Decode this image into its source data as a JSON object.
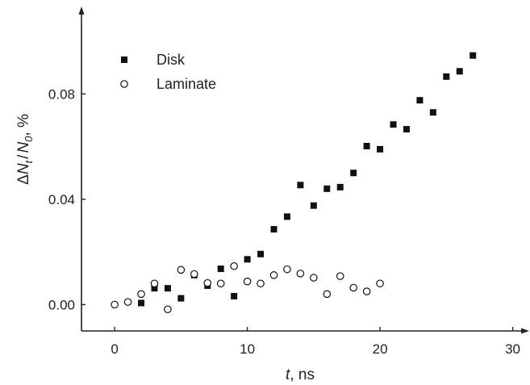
{
  "chart_data": {
    "type": "scatter",
    "xlabel": {
      "var": "t",
      "unit": ", ns"
    },
    "ylabel": {
      "delta": "Δ",
      "var1": "N",
      "sub1": "t",
      "slash": "/",
      "var2": "N",
      "sub2": "0",
      "unit": ", %"
    },
    "xlim": [
      -2.5,
      31
    ],
    "ylim": [
      -0.01,
      0.112
    ],
    "xticks": [
      0,
      10,
      20,
      30
    ],
    "yticks": [
      0.0,
      0.04,
      0.08
    ],
    "xtick_labels": [
      "0",
      "10",
      "20",
      "30"
    ],
    "ytick_labels": [
      "0.00",
      "0.04",
      "0.08"
    ],
    "grid": false,
    "legend_position": "top-left",
    "series": [
      {
        "name": "Disk",
        "marker": "filled-square",
        "color": "#111111",
        "points": [
          [
            2,
            0.0006
          ],
          [
            3,
            0.0062
          ],
          [
            4,
            0.0062
          ],
          [
            5,
            0.0024
          ],
          [
            6,
            0.0112
          ],
          [
            7,
            0.0072
          ],
          [
            8,
            0.0136
          ],
          [
            9,
            0.0032
          ],
          [
            10,
            0.0172
          ],
          [
            11,
            0.0192
          ],
          [
            12,
            0.0286
          ],
          [
            13,
            0.0334
          ],
          [
            14,
            0.0454
          ],
          [
            15,
            0.0376
          ],
          [
            16,
            0.044
          ],
          [
            17,
            0.0446
          ],
          [
            18,
            0.05
          ],
          [
            19,
            0.0602
          ],
          [
            20,
            0.059
          ],
          [
            21,
            0.0684
          ],
          [
            22,
            0.0666
          ],
          [
            23,
            0.0776
          ],
          [
            24,
            0.073
          ],
          [
            25,
            0.0866
          ],
          [
            26,
            0.0886
          ],
          [
            27,
            0.0946
          ]
        ]
      },
      {
        "name": "Laminate",
        "marker": "open-circle",
        "color": "#111111",
        "points": [
          [
            0,
            0.0
          ],
          [
            1,
            0.001
          ],
          [
            2,
            0.004
          ],
          [
            3,
            0.008
          ],
          [
            4,
            -0.0018
          ],
          [
            5,
            0.0132
          ],
          [
            6,
            0.0116
          ],
          [
            7,
            0.0082
          ],
          [
            8,
            0.008
          ],
          [
            9,
            0.0146
          ],
          [
            10,
            0.0088
          ],
          [
            11,
            0.008
          ],
          [
            12,
            0.0112
          ],
          [
            13,
            0.0134
          ],
          [
            14,
            0.0118
          ],
          [
            15,
            0.0102
          ],
          [
            16,
            0.004
          ],
          [
            17,
            0.0108
          ],
          [
            18,
            0.0064
          ],
          [
            19,
            0.005
          ],
          [
            20,
            0.008
          ]
        ]
      }
    ]
  }
}
